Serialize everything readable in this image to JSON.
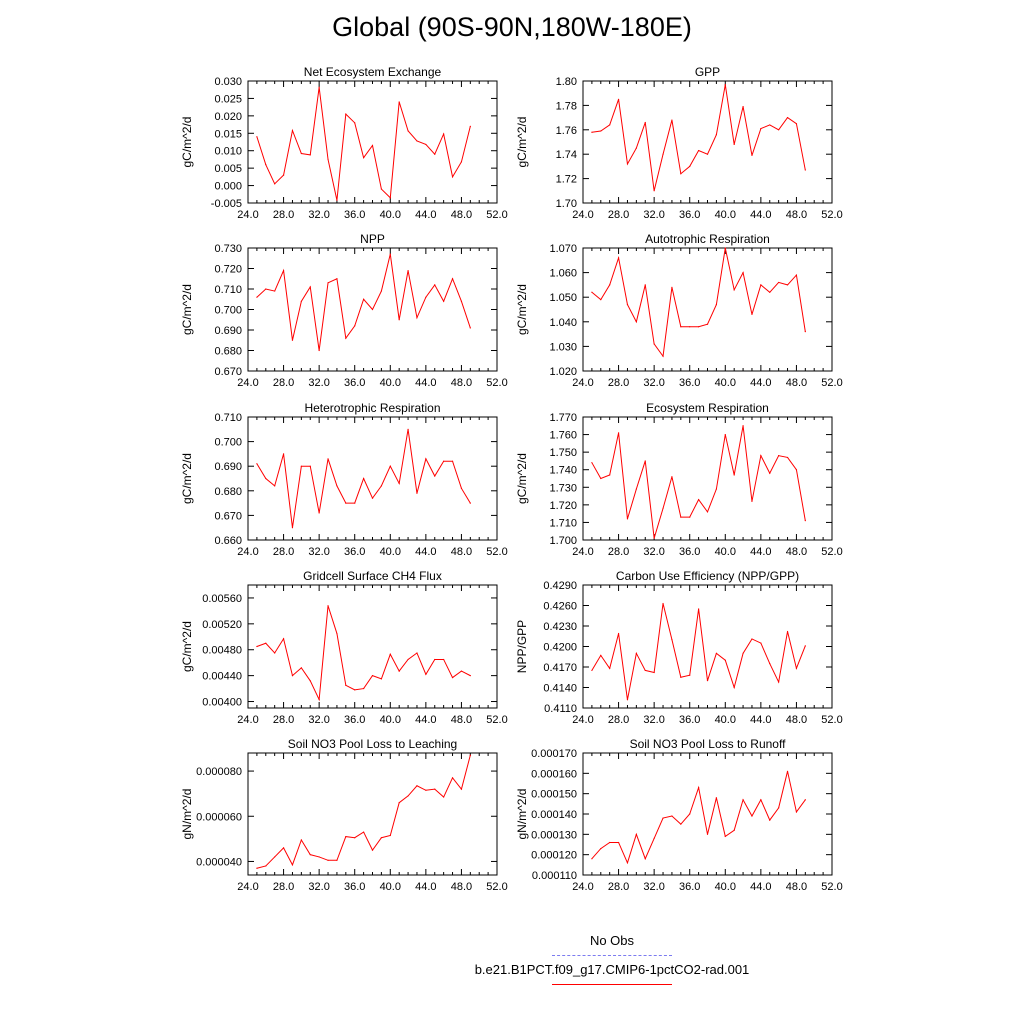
{
  "title": "Global (90S-90N,180W-180E)",
  "colors": {
    "model": "#ff0000",
    "obs": "#7b7bf0",
    "axis": "#000000"
  },
  "legend": {
    "obs_label": "No Obs",
    "model_label": "b.e21.B1PCT.f09_g17.CMIP6-1pctCO2-rad.001"
  },
  "chart_data": [
    {
      "type": "line",
      "title": "Net Ecosystem Exchange",
      "ylabel": "gC/m^2/d",
      "xlim": [
        24,
        52
      ],
      "ylim": [
        -0.005,
        0.03
      ],
      "xticks": [
        "24.0",
        "28.0",
        "32.0",
        "36.0",
        "40.0",
        "44.0",
        "48.0",
        "52.0"
      ],
      "yticks": [
        "-0.005",
        "0.000",
        "0.005",
        "0.010",
        "0.015",
        "0.020",
        "0.025",
        "0.030"
      ],
      "x": [
        25,
        26,
        27,
        28,
        29,
        30,
        31,
        32,
        33,
        34,
        35,
        36,
        37,
        38,
        39,
        40,
        41,
        42,
        43,
        44,
        45,
        46,
        47,
        48,
        49
      ],
      "series": [
        {
          "values": [
            0.014,
            0.006,
            0.0005,
            0.003,
            0.0158,
            0.0092,
            0.0088,
            0.0282,
            0.0075,
            -0.0042,
            0.0205,
            0.018,
            0.008,
            0.0115,
            -0.001,
            -0.0035,
            0.024,
            0.0157,
            0.0128,
            0.0118,
            0.009,
            0.0148,
            0.0025,
            0.0068,
            0.017
          ]
        }
      ]
    },
    {
      "type": "line",
      "title": "GPP",
      "ylabel": "gC/m^2/d",
      "xlim": [
        24,
        52
      ],
      "ylim": [
        1.7,
        1.8
      ],
      "xticks": [
        "24.0",
        "28.0",
        "32.0",
        "36.0",
        "40.0",
        "44.0",
        "48.0",
        "52.0"
      ],
      "yticks": [
        "1.70",
        "1.72",
        "1.74",
        "1.76",
        "1.78",
        "1.80"
      ],
      "x": [
        25,
        26,
        27,
        28,
        29,
        30,
        31,
        32,
        33,
        34,
        35,
        36,
        37,
        38,
        39,
        40,
        41,
        42,
        43,
        44,
        45,
        46,
        47,
        48,
        49
      ],
      "series": [
        {
          "values": [
            1.758,
            1.759,
            1.764,
            1.785,
            1.732,
            1.745,
            1.766,
            1.71,
            1.74,
            1.768,
            1.724,
            1.73,
            1.743,
            1.74,
            1.756,
            1.797,
            1.748,
            1.779,
            1.739,
            1.761,
            1.764,
            1.76,
            1.77,
            1.765,
            1.727
          ]
        }
      ]
    },
    {
      "type": "line",
      "title": "NPP",
      "ylabel": "gC/m^2/d",
      "xlim": [
        24,
        52
      ],
      "ylim": [
        0.67,
        0.73
      ],
      "xticks": [
        "24.0",
        "28.0",
        "32.0",
        "36.0",
        "40.0",
        "44.0",
        "48.0",
        "52.0"
      ],
      "yticks": [
        "0.670",
        "0.680",
        "0.690",
        "0.700",
        "0.710",
        "0.720",
        "0.730"
      ],
      "x": [
        25,
        26,
        27,
        28,
        29,
        30,
        31,
        32,
        33,
        34,
        35,
        36,
        37,
        38,
        39,
        40,
        41,
        42,
        43,
        44,
        45,
        46,
        47,
        48,
        49
      ],
      "series": [
        {
          "values": [
            0.706,
            0.71,
            0.709,
            0.719,
            0.685,
            0.704,
            0.711,
            0.68,
            0.713,
            0.715,
            0.686,
            0.692,
            0.705,
            0.7,
            0.709,
            0.727,
            0.695,
            0.719,
            0.696,
            0.706,
            0.712,
            0.704,
            0.715,
            0.704,
            0.691
          ]
        }
      ]
    },
    {
      "type": "line",
      "title": "Autotrophic Respiration",
      "ylabel": "gC/m^2/d",
      "xlim": [
        24,
        52
      ],
      "ylim": [
        1.02,
        1.07
      ],
      "xticks": [
        "24.0",
        "28.0",
        "32.0",
        "36.0",
        "40.0",
        "44.0",
        "48.0",
        "52.0"
      ],
      "yticks": [
        "1.020",
        "1.030",
        "1.040",
        "1.050",
        "1.060",
        "1.070"
      ],
      "x": [
        25,
        26,
        27,
        28,
        29,
        30,
        31,
        32,
        33,
        34,
        35,
        36,
        37,
        38,
        39,
        40,
        41,
        42,
        43,
        44,
        45,
        46,
        47,
        48,
        49
      ],
      "series": [
        {
          "values": [
            1.052,
            1.049,
            1.055,
            1.066,
            1.047,
            1.04,
            1.055,
            1.031,
            1.026,
            1.054,
            1.038,
            1.038,
            1.038,
            1.039,
            1.047,
            1.07,
            1.053,
            1.06,
            1.043,
            1.055,
            1.052,
            1.056,
            1.055,
            1.059,
            1.036
          ]
        }
      ]
    },
    {
      "type": "line",
      "title": "Heterotrophic Respiration",
      "ylabel": "gC/m^2/d",
      "xlim": [
        24,
        52
      ],
      "ylim": [
        0.66,
        0.71
      ],
      "xticks": [
        "24.0",
        "28.0",
        "32.0",
        "36.0",
        "40.0",
        "44.0",
        "48.0",
        "52.0"
      ],
      "yticks": [
        "0.660",
        "0.670",
        "0.680",
        "0.690",
        "0.700",
        "0.710"
      ],
      "x": [
        25,
        26,
        27,
        28,
        29,
        30,
        31,
        32,
        33,
        34,
        35,
        36,
        37,
        38,
        39,
        40,
        41,
        42,
        43,
        44,
        45,
        46,
        47,
        48,
        49
      ],
      "series": [
        {
          "values": [
            0.691,
            0.685,
            0.682,
            0.695,
            0.665,
            0.69,
            0.69,
            0.671,
            0.693,
            0.682,
            0.675,
            0.675,
            0.685,
            0.677,
            0.682,
            0.69,
            0.683,
            0.705,
            0.679,
            0.693,
            0.686,
            0.692,
            0.692,
            0.681,
            0.675
          ]
        }
      ]
    },
    {
      "type": "line",
      "title": "Ecosystem Respiration",
      "ylabel": "gC/m^2/d",
      "xlim": [
        24,
        52
      ],
      "ylim": [
        1.7,
        1.77
      ],
      "xticks": [
        "24.0",
        "28.0",
        "32.0",
        "36.0",
        "40.0",
        "44.0",
        "48.0",
        "52.0"
      ],
      "yticks": [
        "1.700",
        "1.710",
        "1.720",
        "1.730",
        "1.740",
        "1.750",
        "1.760",
        "1.770"
      ],
      "x": [
        25,
        26,
        27,
        28,
        29,
        30,
        31,
        32,
        33,
        34,
        35,
        36,
        37,
        38,
        39,
        40,
        41,
        42,
        43,
        44,
        45,
        46,
        47,
        48,
        49
      ],
      "series": [
        {
          "values": [
            1.744,
            1.735,
            1.737,
            1.761,
            1.712,
            1.729,
            1.745,
            1.701,
            1.718,
            1.736,
            1.713,
            1.713,
            1.723,
            1.716,
            1.729,
            1.76,
            1.737,
            1.765,
            1.722,
            1.748,
            1.738,
            1.748,
            1.747,
            1.74,
            1.711
          ]
        }
      ]
    },
    {
      "type": "line",
      "title": "Gridcell Surface CH4 Flux",
      "ylabel": "gC/m^2/d",
      "xlim": [
        24,
        52
      ],
      "ylim": [
        0.0039,
        0.0058
      ],
      "xticks": [
        "24.0",
        "28.0",
        "32.0",
        "36.0",
        "40.0",
        "44.0",
        "48.0",
        "52.0"
      ],
      "yticks": [
        "0.00400",
        "0.00440",
        "0.00480",
        "0.00520",
        "0.00560"
      ],
      "ytick_values": [
        0.004,
        0.0044,
        0.0048,
        0.0052,
        0.0056
      ],
      "x": [
        25,
        26,
        27,
        28,
        29,
        30,
        31,
        32,
        33,
        34,
        35,
        36,
        37,
        38,
        39,
        40,
        41,
        42,
        43,
        44,
        45,
        46,
        47,
        48,
        49
      ],
      "series": [
        {
          "values": [
            0.00485,
            0.0049,
            0.00475,
            0.00497,
            0.0044,
            0.00452,
            0.00432,
            0.00403,
            0.00548,
            0.00505,
            0.00425,
            0.00418,
            0.0042,
            0.0044,
            0.00435,
            0.00473,
            0.00447,
            0.00465,
            0.00475,
            0.00442,
            0.00465,
            0.00465,
            0.00437,
            0.00447,
            0.0044
          ]
        }
      ]
    },
    {
      "type": "line",
      "title": "Carbon Use Efficiency (NPP/GPP)",
      "ylabel": "NPP/GPP",
      "xlim": [
        24,
        52
      ],
      "ylim": [
        0.411,
        0.429
      ],
      "xticks": [
        "24.0",
        "28.0",
        "32.0",
        "36.0",
        "40.0",
        "44.0",
        "48.0",
        "52.0"
      ],
      "yticks": [
        "0.4110",
        "0.4140",
        "0.4170",
        "0.4200",
        "0.4230",
        "0.4260",
        "0.4290"
      ],
      "x": [
        25,
        26,
        27,
        28,
        29,
        30,
        31,
        32,
        33,
        34,
        35,
        36,
        37,
        38,
        39,
        40,
        41,
        42,
        43,
        44,
        45,
        46,
        47,
        48,
        49
      ],
      "series": [
        {
          "values": [
            0.4165,
            0.4187,
            0.4168,
            0.4219,
            0.4122,
            0.419,
            0.4165,
            0.4162,
            0.4263,
            0.421,
            0.4155,
            0.4158,
            0.4255,
            0.415,
            0.419,
            0.418,
            0.414,
            0.419,
            0.4211,
            0.4205,
            0.4175,
            0.4148,
            0.4222,
            0.4168,
            0.4201
          ]
        }
      ]
    },
    {
      "type": "line",
      "title": "Soil NO3 Pool Loss to Leaching",
      "ylabel": "gN/m^2/d",
      "xlim": [
        24,
        52
      ],
      "ylim": [
        3.4e-05,
        8.8e-05
      ],
      "xticks": [
        "24.0",
        "28.0",
        "32.0",
        "36.0",
        "40.0",
        "44.0",
        "48.0",
        "52.0"
      ],
      "yticks": [
        "0.000040",
        "0.000060",
        "0.000080"
      ],
      "ytick_values": [
        4e-05,
        6e-05,
        8e-05
      ],
      "x": [
        25,
        26,
        27,
        28,
        29,
        30,
        31,
        32,
        33,
        34,
        35,
        36,
        37,
        38,
        39,
        40,
        41,
        42,
        43,
        44,
        45,
        46,
        47,
        48,
        49
      ],
      "series": [
        {
          "values": [
            3.7e-05,
            3.8e-05,
            4.2e-05,
            4.6e-05,
            3.85e-05,
            4.95e-05,
            4.3e-05,
            4.2e-05,
            4.05e-05,
            4.05e-05,
            5.1e-05,
            5.05e-05,
            5.3e-05,
            4.5e-05,
            5.05e-05,
            5.15e-05,
            6.6e-05,
            6.9e-05,
            7.35e-05,
            7.15e-05,
            7.2e-05,
            6.85e-05,
            7.7e-05,
            7.2e-05,
            8.7e-05
          ]
        }
      ]
    },
    {
      "type": "line",
      "title": "Soil NO3 Pool Loss to Runoff",
      "ylabel": "gN/m^2/d",
      "xlim": [
        24,
        52
      ],
      "ylim": [
        0.00011,
        0.00017
      ],
      "xticks": [
        "24.0",
        "28.0",
        "32.0",
        "36.0",
        "40.0",
        "44.0",
        "48.0",
        "52.0"
      ],
      "yticks": [
        "0.000110",
        "0.000120",
        "0.000130",
        "0.000140",
        "0.000150",
        "0.000160",
        "0.000170"
      ],
      "x": [
        25,
        26,
        27,
        28,
        29,
        30,
        31,
        32,
        33,
        34,
        35,
        36,
        37,
        38,
        39,
        40,
        41,
        42,
        43,
        44,
        45,
        46,
        47,
        48,
        49
      ],
      "series": [
        {
          "values": [
            0.000118,
            0.000123,
            0.000126,
            0.000126,
            0.000116,
            0.00013,
            0.000118,
            0.000128,
            0.000138,
            0.000139,
            0.000135,
            0.00014,
            0.000153,
            0.00013,
            0.000148,
            0.000129,
            0.000132,
            0.000147,
            0.000139,
            0.000147,
            0.000137,
            0.000143,
            0.000161,
            0.000141,
            0.000147
          ]
        }
      ]
    }
  ]
}
